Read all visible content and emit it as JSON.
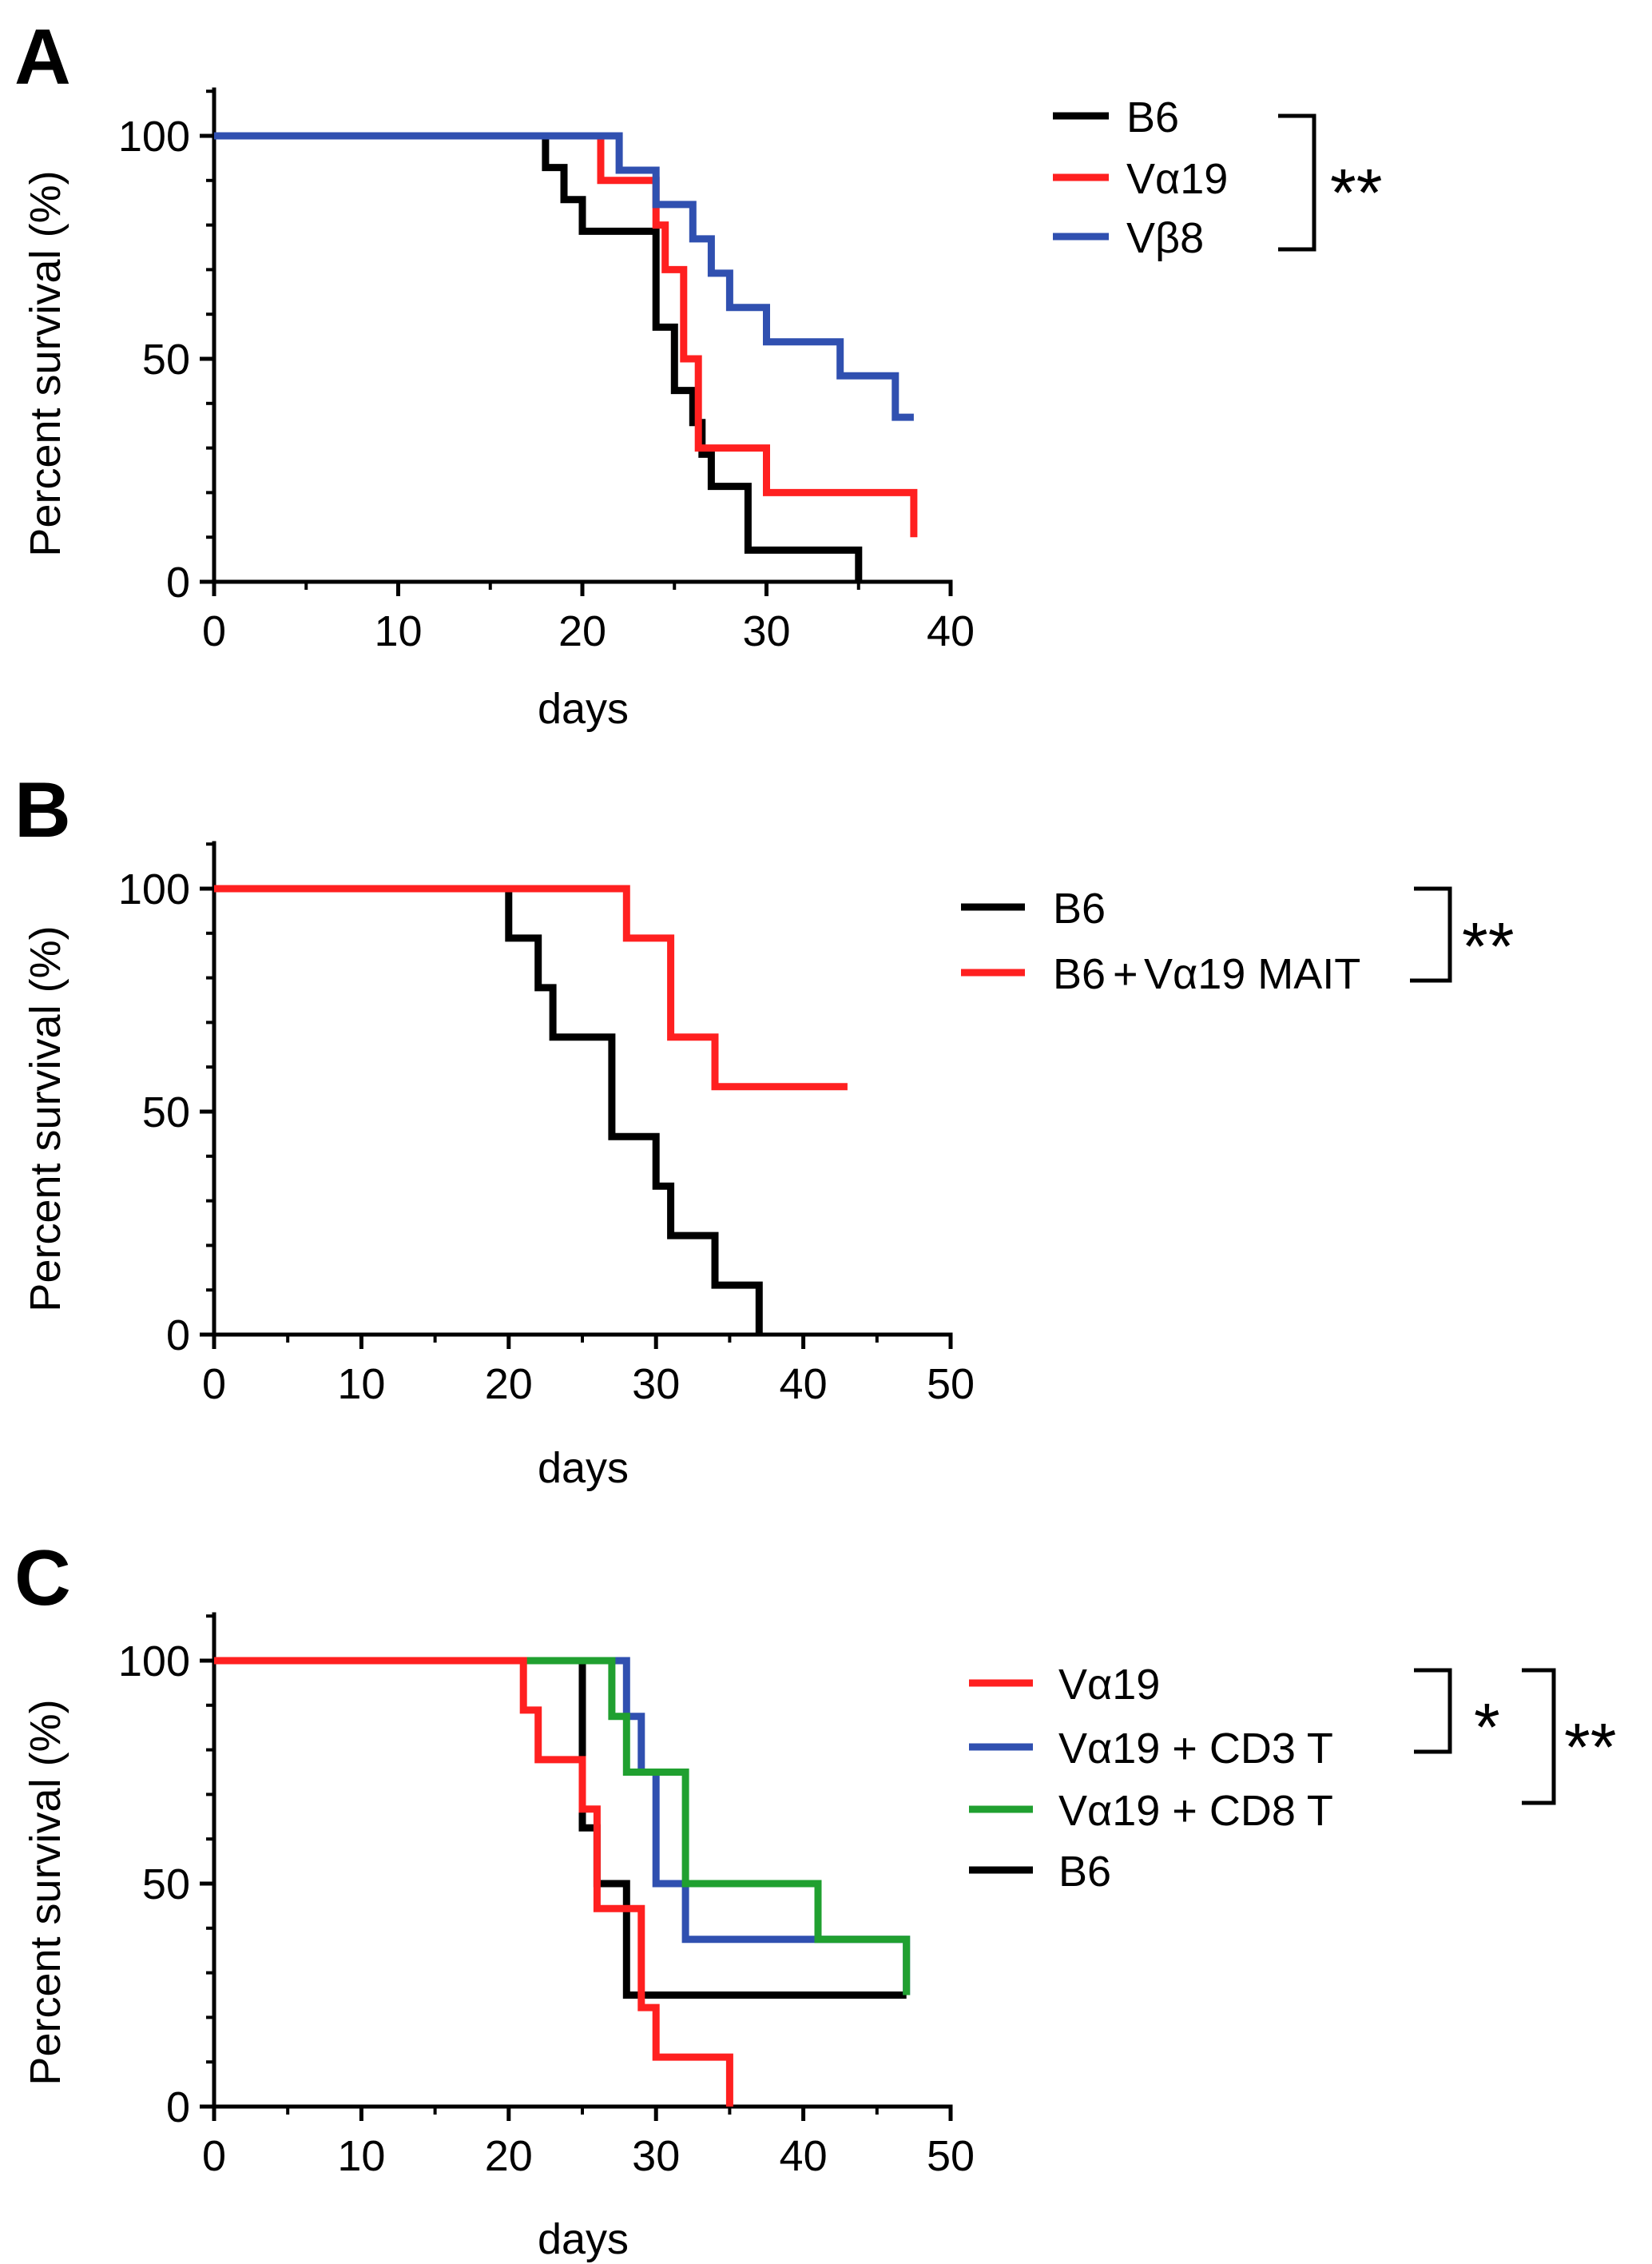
{
  "chart_data": [
    {
      "panel_label": "A",
      "type": "line",
      "step": true,
      "xlabel": "days",
      "ylabel": "Percent survival (%)",
      "xlim": [
        0,
        40
      ],
      "ylim": [
        0,
        100
      ],
      "xticks": [
        "0",
        "10",
        "20",
        "30",
        "40"
      ],
      "yticks": [
        "0",
        "50",
        "100"
      ],
      "series": [
        {
          "name": "B6",
          "color": "#000000",
          "points": [
            [
              0,
              100
            ],
            [
              18,
              100
            ],
            [
              18,
              92.9
            ],
            [
              19,
              92.9
            ],
            [
              19,
              85.7
            ],
            [
              20,
              85.7
            ],
            [
              20,
              78.6
            ],
            [
              24,
              78.6
            ],
            [
              24,
              57.1
            ],
            [
              25,
              57.1
            ],
            [
              25,
              42.9
            ],
            [
              26,
              42.9
            ],
            [
              26,
              35.7
            ],
            [
              26.5,
              35.7
            ],
            [
              26.5,
              28.6
            ],
            [
              27,
              28.6
            ],
            [
              27,
              21.4
            ],
            [
              29,
              21.4
            ],
            [
              29,
              7.1
            ],
            [
              35,
              7.1
            ],
            [
              35,
              0
            ]
          ]
        },
        {
          "name": "Vα19",
          "color": "#ff2020",
          "points": [
            [
              0,
              100
            ],
            [
              21,
              100
            ],
            [
              21,
              90
            ],
            [
              24,
              90
            ],
            [
              24,
              80
            ],
            [
              24.5,
              80
            ],
            [
              24.5,
              70
            ],
            [
              25.5,
              70
            ],
            [
              25.5,
              50
            ],
            [
              26.3,
              50
            ],
            [
              26.3,
              30
            ],
            [
              30,
              30
            ],
            [
              30,
              20
            ],
            [
              38,
              20
            ],
            [
              38,
              10
            ]
          ]
        },
        {
          "name": "Vβ8",
          "color": "#3050b0",
          "points": [
            [
              0,
              100
            ],
            [
              22,
              100
            ],
            [
              22,
              92.3
            ],
            [
              24,
              92.3
            ],
            [
              24,
              84.6
            ],
            [
              26,
              84.6
            ],
            [
              26,
              76.9
            ],
            [
              27,
              76.9
            ],
            [
              27,
              69.2
            ],
            [
              28,
              69.2
            ],
            [
              28,
              61.5
            ],
            [
              30,
              61.5
            ],
            [
              30,
              53.8
            ],
            [
              34,
              53.8
            ],
            [
              34,
              46.2
            ],
            [
              37,
              46.2
            ],
            [
              37,
              36.9
            ],
            [
              38,
              36.9
            ]
          ]
        }
      ],
      "legend": [
        "B6",
        "Vα19",
        "Vβ8"
      ],
      "significance": [
        {
          "label": "**",
          "spans": [
            "B6",
            "Vβ8"
          ]
        }
      ]
    },
    {
      "panel_label": "B",
      "type": "line",
      "step": true,
      "xlabel": "days",
      "ylabel": "Percent survival (%)",
      "xlim": [
        0,
        50
      ],
      "ylim": [
        0,
        100
      ],
      "xticks": [
        "0",
        "10",
        "20",
        "30",
        "40",
        "50"
      ],
      "yticks": [
        "0",
        "50",
        "100"
      ],
      "series": [
        {
          "name": "B6",
          "color": "#000000",
          "points": [
            [
              0,
              100
            ],
            [
              20,
              100
            ],
            [
              20,
              88.9
            ],
            [
              22,
              88.9
            ],
            [
              22,
              77.8
            ],
            [
              23,
              77.8
            ],
            [
              23,
              66.7
            ],
            [
              27,
              66.7
            ],
            [
              27,
              44.4
            ],
            [
              30,
              44.4
            ],
            [
              30,
              33.3
            ],
            [
              31,
              33.3
            ],
            [
              31,
              22.2
            ],
            [
              34,
              22.2
            ],
            [
              34,
              11.1
            ],
            [
              37,
              11.1
            ],
            [
              37,
              0
            ]
          ]
        },
        {
          "name": "B6+Vα19 MAIT",
          "color": "#ff2020",
          "points": [
            [
              0,
              100
            ],
            [
              28,
              100
            ],
            [
              28,
              88.9
            ],
            [
              31,
              88.9
            ],
            [
              31,
              66.7
            ],
            [
              34,
              66.7
            ],
            [
              34,
              55.6
            ],
            [
              43,
              55.6
            ]
          ]
        }
      ],
      "legend": [
        "B6",
        "B6+Vα19 MAIT"
      ],
      "legend_parts": {
        "b6": "B6",
        "plus": "+",
        "mait": "Vα19 MAIT"
      },
      "significance": [
        {
          "label": "**",
          "spans": [
            "B6",
            "B6+Vα19 MAIT"
          ]
        }
      ]
    },
    {
      "panel_label": "C",
      "type": "line",
      "step": true,
      "xlabel": "days",
      "ylabel": "Percent survival (%)",
      "xlim": [
        0,
        50
      ],
      "ylim": [
        0,
        100
      ],
      "xticks": [
        "0",
        "10",
        "20",
        "30",
        "40",
        "50"
      ],
      "yticks": [
        "0",
        "50",
        "100"
      ],
      "series": [
        {
          "name": "B6",
          "color": "#000000",
          "points": [
            [
              0,
              100
            ],
            [
              25,
              100
            ],
            [
              25,
              62.5
            ],
            [
              26,
              62.5
            ],
            [
              26,
              50
            ],
            [
              28,
              50
            ],
            [
              28,
              25
            ],
            [
              47,
              25
            ]
          ]
        },
        {
          "name": "Vα19 + CD3 T",
          "color": "#3050b0",
          "points": [
            [
              0,
              100
            ],
            [
              28,
              100
            ],
            [
              28,
              87.5
            ],
            [
              29,
              87.5
            ],
            [
              29,
              75
            ],
            [
              30,
              75
            ],
            [
              30,
              50
            ],
            [
              32,
              50
            ],
            [
              32,
              37.5
            ],
            [
              47,
              37.5
            ],
            [
              47,
              25
            ]
          ]
        },
        {
          "name": "Vα19 + CD8 T",
          "color": "#20a030",
          "points": [
            [
              0,
              100
            ],
            [
              27,
              100
            ],
            [
              27,
              87.5
            ],
            [
              28,
              87.5
            ],
            [
              28,
              75
            ],
            [
              32,
              75
            ],
            [
              32,
              50
            ],
            [
              41,
              50
            ],
            [
              41,
              37.5
            ],
            [
              47,
              37.5
            ],
            [
              47,
              25
            ]
          ]
        },
        {
          "name": "Vα19",
          "color": "#ff2020",
          "points": [
            [
              0,
              100
            ],
            [
              21,
              100
            ],
            [
              21,
              88.9
            ],
            [
              22,
              88.9
            ],
            [
              22,
              77.8
            ],
            [
              25,
              77.8
            ],
            [
              25,
              66.7
            ],
            [
              26,
              66.7
            ],
            [
              26,
              44.4
            ],
            [
              29,
              44.4
            ],
            [
              29,
              22.2
            ],
            [
              30,
              22.2
            ],
            [
              30,
              11.1
            ],
            [
              35,
              11.1
            ],
            [
              35,
              0
            ]
          ]
        }
      ],
      "legend": [
        "Vα19",
        "Vα19 + CD3 T",
        "Vα19 + CD8 T",
        "B6"
      ],
      "significance": [
        {
          "label": "*",
          "spans": [
            "Vα19",
            "Vα19 + CD3 T"
          ]
        },
        {
          "label": "**",
          "spans": [
            "Vα19",
            "Vα19 + CD8 T"
          ]
        }
      ]
    }
  ]
}
